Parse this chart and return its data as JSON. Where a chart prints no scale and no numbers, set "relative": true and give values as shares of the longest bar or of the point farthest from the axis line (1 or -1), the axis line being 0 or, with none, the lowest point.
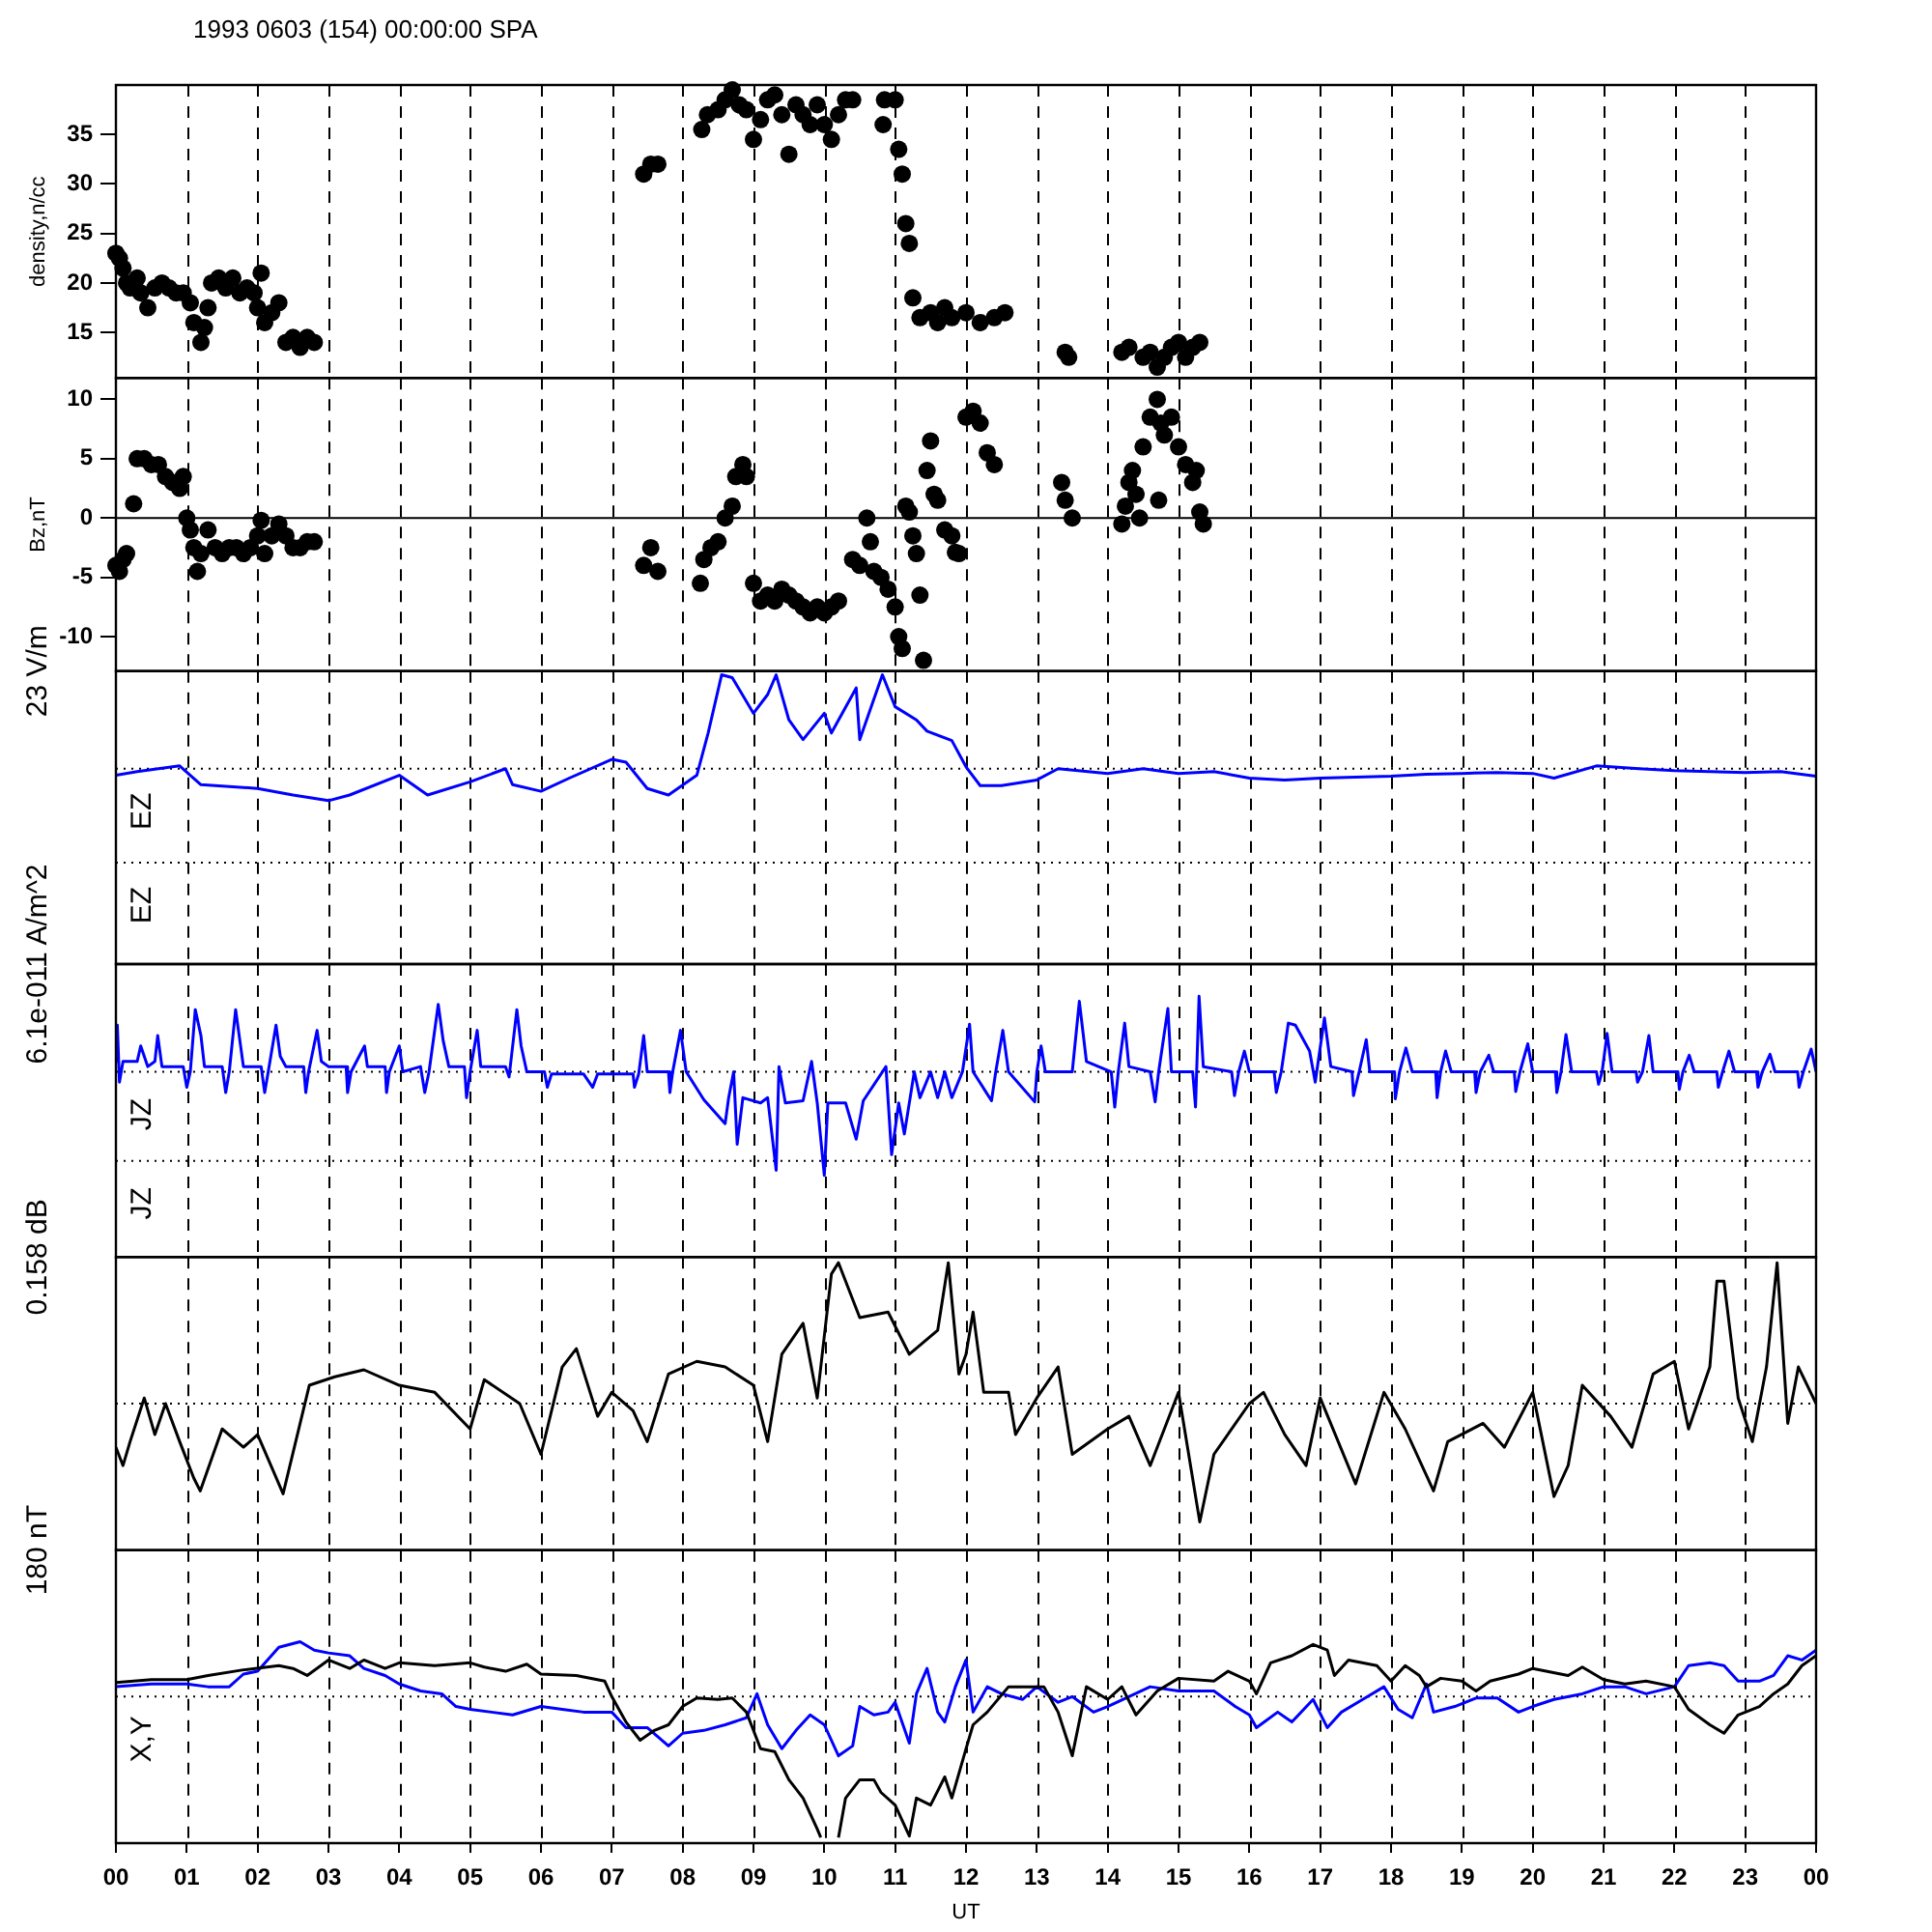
{
  "chart_data": [
    {
      "type": "scatter",
      "title": "1993 0603 (154) 00:00:00 SPA",
      "ylabel": "density,n/cc",
      "marker": "circle",
      "grid": "x",
      "tick_labels": "y",
      "xlim": [
        0,
        24
      ],
      "xticks": [
        {
          "value": 0,
          "label": null
        },
        {
          "value": 1,
          "label": null
        },
        {
          "value": 2,
          "label": null
        },
        {
          "value": 3,
          "label": null
        },
        {
          "value": 4,
          "label": null
        },
        {
          "value": 5,
          "label": null
        },
        {
          "value": 6,
          "label": null
        },
        {
          "value": 7,
          "label": null
        },
        {
          "value": 8,
          "label": null
        },
        {
          "value": 9,
          "label": null
        },
        {
          "value": 10,
          "label": null
        },
        {
          "value": 11,
          "label": null
        },
        {
          "value": 12,
          "label": null
        },
        {
          "value": 13,
          "label": null
        },
        {
          "value": 14,
          "label": null
        },
        {
          "value": 15,
          "label": null
        },
        {
          "value": 16,
          "label": null
        },
        {
          "value": 17,
          "label": null
        },
        {
          "value": 18,
          "label": null
        },
        {
          "value": 19,
          "label": null
        },
        {
          "value": 20,
          "label": null
        },
        {
          "value": 21,
          "label": null
        },
        {
          "value": 22,
          "label": null
        },
        {
          "value": 23,
          "label": null
        },
        {
          "value": 24,
          "label": null
        }
      ],
      "ylim": [
        10.4,
        40
      ],
      "yticks": [
        15,
        20,
        25,
        30,
        35
      ],
      "color": "#000000",
      "x": [
        0,
        0.05,
        0.1,
        0.15,
        0.2,
        0.3,
        0.35,
        0.45,
        0.55,
        0.65,
        0.75,
        0.85,
        0.95,
        1.05,
        1.1,
        1.2,
        1.25,
        1.3,
        1.35,
        1.45,
        1.55,
        1.65,
        1.75,
        1.85,
        1.95,
        2,
        2.05,
        2.1,
        2.2,
        2.3,
        2.4,
        2.5,
        2.6,
        2.7,
        2.8,
        7.45,
        7.55,
        7.65,
        8.27,
        8.35,
        8.5,
        8.6,
        8.7,
        8.8,
        8.9,
        9,
        9.1,
        9.2,
        9.3,
        9.4,
        9.5,
        9.6,
        9.7,
        9.8,
        9.9,
        10,
        10.1,
        10.2,
        10.3,
        10.4,
        10.83,
        10.85,
        11,
        11.05,
        11.1,
        11.15,
        11.2,
        11.25,
        11.35,
        11.5,
        11.6,
        11.7,
        11.8,
        12,
        12.2,
        12.4,
        12.55,
        13.4,
        13.45,
        14.2,
        14.3,
        14.5,
        14.6,
        14.7,
        14.8,
        14.9,
        15,
        15.1,
        15.2,
        15.3
      ],
      "values": [
        23,
        22.5,
        21.5,
        20,
        19.5,
        20.5,
        19,
        17.5,
        19.5,
        20,
        19.5,
        19,
        19,
        18,
        16,
        14,
        15.5,
        17.5,
        20,
        20.5,
        19.5,
        20.5,
        19,
        19.5,
        19,
        17.5,
        21,
        16,
        17,
        18,
        14,
        14.5,
        13.5,
        14.5,
        14,
        31,
        32,
        32,
        35.5,
        37,
        37.5,
        38.5,
        39.5,
        38,
        37.5,
        34.5,
        36.5,
        38.5,
        39,
        37,
        33,
        38,
        37,
        36,
        38,
        36,
        34.5,
        37,
        38.5,
        38.5,
        36,
        38.5,
        38.5,
        33.5,
        31,
        26,
        24,
        18.5,
        16.5,
        17,
        16,
        17.5,
        16.5,
        17,
        16,
        16.5,
        17,
        13,
        12.5,
        13,
        13.5,
        12.5,
        13,
        11.5,
        12.5,
        13.5,
        14,
        12.5,
        13.5,
        14
      ]
    },
    {
      "type": "scatter",
      "ylabel": "Bz,nT",
      "marker": "circle",
      "grid": "x",
      "tick_labels": "y",
      "xlim": [
        0,
        24
      ],
      "xticks": [
        {
          "value": 0,
          "label": null
        },
        {
          "value": 1,
          "label": null
        },
        {
          "value": 2,
          "label": null
        },
        {
          "value": 3,
          "label": null
        },
        {
          "value": 4,
          "label": null
        },
        {
          "value": 5,
          "label": null
        },
        {
          "value": 6,
          "label": null
        },
        {
          "value": 7,
          "label": null
        },
        {
          "value": 8,
          "label": null
        },
        {
          "value": 9,
          "label": null
        },
        {
          "value": 10,
          "label": null
        },
        {
          "value": 11,
          "label": null
        },
        {
          "value": 12,
          "label": null
        },
        {
          "value": 13,
          "label": null
        },
        {
          "value": 14,
          "label": null
        },
        {
          "value": 15,
          "label": null
        },
        {
          "value": 16,
          "label": null
        },
        {
          "value": 17,
          "label": null
        },
        {
          "value": 18,
          "label": null
        },
        {
          "value": 19,
          "label": null
        },
        {
          "value": 20,
          "label": null
        },
        {
          "value": 21,
          "label": null
        },
        {
          "value": 22,
          "label": null
        },
        {
          "value": 23,
          "label": null
        },
        {
          "value": 24,
          "label": null
        }
      ],
      "ylim": [
        -12.9,
        11.8
      ],
      "yticks": [
        -10,
        -5,
        0,
        5,
        10
      ],
      "color": "#000000",
      "ref_lines": [
        {
          "axis": "y",
          "value": 0,
          "line_style": "solid"
        }
      ],
      "x": [
        0,
        0.05,
        0.1,
        0.15,
        0.25,
        0.3,
        0.4,
        0.5,
        0.6,
        0.7,
        0.8,
        0.9,
        0.95,
        1,
        1.05,
        1.1,
        1.15,
        1.2,
        1.3,
        1.4,
        1.5,
        1.6,
        1.7,
        1.8,
        1.9,
        2,
        2.05,
        2.1,
        2.2,
        2.3,
        2.4,
        2.5,
        2.6,
        2.7,
        2.8,
        7.45,
        7.55,
        7.65,
        8.25,
        8.3,
        8.4,
        8.5,
        8.6,
        8.7,
        8.75,
        8.85,
        8.9,
        9,
        9.1,
        9.2,
        9.3,
        9.4,
        9.5,
        9.6,
        9.7,
        9.8,
        9.9,
        10,
        10.1,
        10.2,
        10.4,
        10.5,
        10.6,
        10.65,
        10.7,
        10.8,
        10.9,
        11,
        11.05,
        11.1,
        11.15,
        11.2,
        11.25,
        11.3,
        11.35,
        11.4,
        11.45,
        11.5,
        11.55,
        11.6,
        11.7,
        11.8,
        11.85,
        11.9,
        12,
        12.1,
        12.2,
        12.3,
        12.4,
        13.35,
        13.4,
        13.5,
        14.2,
        14.25,
        14.3,
        14.35,
        14.4,
        14.45,
        14.5,
        14.6,
        14.7,
        14.72,
        14.75,
        14.8,
        14.9,
        15,
        15.1,
        15.2,
        15.25,
        15.3,
        15.35
      ],
      "values": [
        -4,
        -4.5,
        -3.5,
        -3,
        1.2,
        5,
        5,
        4.5,
        4.5,
        3.5,
        3,
        2.5,
        3.5,
        0,
        -1,
        -2.5,
        -4.5,
        -3,
        -1,
        -2.5,
        -3,
        -2.5,
        -2.5,
        -3,
        -2.5,
        -1.5,
        -0.2,
        -3,
        -1.5,
        -0.5,
        -1.5,
        -2.5,
        -2.5,
        -2,
        -2,
        -4,
        -2.5,
        -4.5,
        -5.5,
        -3.5,
        -2.5,
        -2,
        0,
        1,
        3.5,
        4.5,
        3.5,
        -5.5,
        -7,
        -6.5,
        -7,
        -6,
        -6.5,
        -7,
        -7.5,
        -8,
        -7.5,
        -8,
        -7.5,
        -7,
        -3.5,
        -4,
        0,
        -2,
        -4.5,
        -5,
        -6,
        -7.5,
        -10,
        -11,
        1,
        0.5,
        -1.5,
        -3,
        -6.5,
        -12,
        4,
        6.5,
        2,
        1.5,
        -1,
        -1.5,
        -2.9,
        -3,
        8.5,
        9,
        8,
        5.5,
        4.5,
        3,
        1.5,
        0,
        -0.5,
        1,
        3,
        4,
        2,
        0,
        6,
        8.5,
        10,
        1.5,
        8,
        7,
        8.5,
        6,
        4.5,
        3,
        4,
        0.5,
        -0.5
      ]
    },
    {
      "type": "line",
      "ylabel": "23 V/m",
      "annotations": [
        "EZ",
        "EZ"
      ],
      "relative": true,
      "grid": "x",
      "tick_labels": false,
      "xlim": [
        0,
        24
      ],
      "xticks": [
        {
          "value": 0,
          "label": null
        },
        {
          "value": 1,
          "label": null
        },
        {
          "value": 2,
          "label": null
        },
        {
          "value": 3,
          "label": null
        },
        {
          "value": 4,
          "label": null
        },
        {
          "value": 5,
          "label": null
        },
        {
          "value": 6,
          "label": null
        },
        {
          "value": 7,
          "label": null
        },
        {
          "value": 8,
          "label": null
        },
        {
          "value": 9,
          "label": null
        },
        {
          "value": 10,
          "label": null
        },
        {
          "value": 11,
          "label": null
        },
        {
          "value": 12,
          "label": null
        },
        {
          "value": 13,
          "label": null
        },
        {
          "value": 14,
          "label": null
        },
        {
          "value": 15,
          "label": null
        },
        {
          "value": 16,
          "label": null
        },
        {
          "value": 17,
          "label": null
        },
        {
          "value": 18,
          "label": null
        },
        {
          "value": 19,
          "label": null
        },
        {
          "value": 20,
          "label": null
        },
        {
          "value": 21,
          "label": null
        },
        {
          "value": 22,
          "label": null
        },
        {
          "value": 23,
          "label": null
        },
        {
          "value": 24,
          "label": null
        }
      ],
      "ref_lines": [
        {
          "axis": "y",
          "value": 0,
          "line_style": "dotted"
        },
        {
          "axis": "y",
          "value": -1,
          "line_style": "dotted"
        }
      ],
      "color": "#0000ff",
      "x": [
        0,
        0.3,
        0.9,
        1.2,
        2,
        2.5,
        3,
        3.3,
        4,
        4.4,
        5,
        5.5,
        5.6,
        6,
        6.4,
        7,
        7.2,
        7.5,
        7.8,
        8.2,
        8.36,
        8.55,
        8.7,
        9,
        9.2,
        9.32,
        9.5,
        9.7,
        10,
        10.1,
        10.45,
        10.5,
        10.82,
        11,
        11.3,
        11.45,
        11.8,
        12,
        12.2,
        12.5,
        13,
        13.3,
        14,
        14.5,
        15,
        15.5,
        16,
        16.5,
        17,
        18,
        18.5,
        19,
        19.5,
        20,
        20.3,
        20.9,
        21.5,
        22,
        22.5,
        23,
        23.5,
        24
      ],
      "values": [
        -0.07,
        -0.03,
        0.03,
        -0.17,
        -0.21,
        -0.28,
        -0.34,
        -0.28,
        -0.07,
        -0.28,
        -0.14,
        0,
        -0.17,
        -0.24,
        -0.1,
        0.1,
        0.07,
        -0.21,
        -0.28,
        -0.07,
        0.38,
        1,
        0.97,
        0.59,
        0.79,
        1,
        0.52,
        0.31,
        0.59,
        0.38,
        0.86,
        0.31,
        1,
        0.66,
        0.52,
        0.4,
        0.3,
        0.02,
        -0.18,
        -0.18,
        -0.12,
        0,
        -0.05,
        0,
        -0.05,
        -0.03,
        -0.1,
        -0.12,
        -0.1,
        -0.08,
        -0.06,
        -0.05,
        -0.04,
        -0.05,
        -0.1,
        0.03,
        0,
        -0.02,
        -0.03,
        -0.04,
        -0.03,
        -0.08
      ]
    },
    {
      "type": "line",
      "ylabel": "6.1e-011 A/m^2",
      "annotations": [
        "JZ",
        "JZ"
      ],
      "relative": true,
      "grid": "x",
      "tick_labels": false,
      "xlim": [
        0,
        24
      ],
      "xticks": [
        {
          "value": 0,
          "label": null
        },
        {
          "value": 1,
          "label": null
        },
        {
          "value": 2,
          "label": null
        },
        {
          "value": 3,
          "label": null
        },
        {
          "value": 4,
          "label": null
        },
        {
          "value": 5,
          "label": null
        },
        {
          "value": 6,
          "label": null
        },
        {
          "value": 7,
          "label": null
        },
        {
          "value": 8,
          "label": null
        },
        {
          "value": 9,
          "label": null
        },
        {
          "value": 10,
          "label": null
        },
        {
          "value": 11,
          "label": null
        },
        {
          "value": 12,
          "label": null
        },
        {
          "value": 13,
          "label": null
        },
        {
          "value": 14,
          "label": null
        },
        {
          "value": 15,
          "label": null
        },
        {
          "value": 16,
          "label": null
        },
        {
          "value": 17,
          "label": null
        },
        {
          "value": 18,
          "label": null
        },
        {
          "value": 19,
          "label": null
        },
        {
          "value": 20,
          "label": null
        },
        {
          "value": 21,
          "label": null
        },
        {
          "value": 22,
          "label": null
        },
        {
          "value": 23,
          "label": null
        },
        {
          "value": 24,
          "label": null
        }
      ],
      "ref_lines": [
        {
          "axis": "y",
          "value": 0,
          "line_style": "dotted"
        },
        {
          "axis": "y",
          "value": -0.86,
          "line_style": "dotted"
        }
      ],
      "color": "#0000ff",
      "x": [
        0,
        0.02,
        0.05,
        0.1,
        0.3,
        0.35,
        0.45,
        0.55,
        0.59,
        0.65,
        0.95,
        1,
        1.05,
        1.12,
        1.2,
        1.25,
        1.5,
        1.55,
        1.6,
        1.69,
        1.75,
        1.8,
        2.05,
        2.1,
        2.15,
        2.26,
        2.32,
        2.4,
        2.65,
        2.68,
        2.72,
        2.84,
        2.9,
        3,
        3.25,
        3.27,
        3.32,
        3.51,
        3.55,
        3.8,
        3.82,
        3.86,
        4,
        4.05,
        4.3,
        4.36,
        4.42,
        4.55,
        4.62,
        4.7,
        4.92,
        4.95,
        5,
        5.1,
        5.15,
        5.5,
        5.55,
        5.66,
        5.72,
        5.8,
        6.05,
        6.09,
        6.15,
        6.6,
        6.73,
        6.8,
        7.3,
        7.32,
        7.38,
        7.45,
        7.5,
        7.8,
        7.82,
        7.86,
        7.97,
        8.05,
        8.3,
        8.6,
        8.65,
        8.72,
        8.77,
        8.85,
        9.1,
        9.2,
        9.32,
        9.36,
        9.45,
        9.7,
        9.82,
        9.9,
        10,
        10.05,
        10.3,
        10.45,
        10.55,
        10.87,
        10.95,
        11.05,
        11.13,
        11.27,
        11.35,
        11.5,
        11.6,
        11.7,
        11.8,
        11.95,
        12.05,
        12.1,
        12.36,
        12.42,
        12.52,
        12.6,
        12.97,
        13,
        13.06,
        13.12,
        13.5,
        13.6,
        13.7,
        14.05,
        14.1,
        14.15,
        14.24,
        14.3,
        14.6,
        14.67,
        14.72,
        14.85,
        14.9,
        15.2,
        15.24,
        15.29,
        15.35,
        15.75,
        15.79,
        15.85,
        15.93,
        16,
        16.35,
        16.38,
        16.45,
        16.55,
        16.65,
        16.85,
        16.93,
        17.06,
        17.15,
        17.45,
        17.47,
        17.55,
        17.65,
        17.7,
        18.05,
        18.06,
        18.12,
        18.21,
        18.3,
        18.63,
        18.65,
        18.7,
        18.77,
        18.85,
        19.18,
        19.2,
        19.26,
        19.38,
        19.45,
        19.74,
        19.76,
        19.82,
        19.93,
        20,
        20.32,
        20.34,
        20.4,
        20.47,
        20.55,
        20.9,
        20.93,
        20.98,
        21.05,
        21.12,
        21.46,
        21.48,
        21.55,
        21.64,
        21.7,
        22.05,
        22.07,
        22.12,
        22.21,
        22.28,
        22.6,
        22.62,
        22.68,
        22.77,
        22.85,
        23.16,
        23.18,
        23.24,
        23.35,
        23.42,
        23.74,
        23.76,
        23.82,
        23.93,
        24
      ],
      "values": [
        0.1,
        0.45,
        -0.1,
        0.1,
        0.1,
        0.25,
        0.05,
        0.1,
        0.35,
        0.05,
        0.05,
        -0.15,
        0,
        0.6,
        0.35,
        0.05,
        0.05,
        -0.2,
        0,
        0.6,
        0.3,
        0.05,
        0.05,
        -0.2,
        0,
        0.45,
        0.15,
        0.05,
        0.05,
        -0.2,
        0,
        0.4,
        0.1,
        0.05,
        0.05,
        -0.2,
        0,
        0.25,
        0.05,
        0.05,
        -0.2,
        0,
        0.25,
        0,
        0.05,
        -0.2,
        0,
        0.65,
        0.3,
        0.05,
        0.05,
        -0.25,
        0,
        0.4,
        0.05,
        0.05,
        -0.05,
        0.6,
        0.25,
        0,
        0,
        -0.15,
        -0.02,
        -0.02,
        -0.15,
        -0.02,
        -0.02,
        -0.15,
        -0.02,
        0.35,
        0,
        0,
        -0.2,
        0,
        0.4,
        0,
        -0.27,
        -0.5,
        -0.25,
        0,
        -0.7,
        -0.25,
        -0.3,
        -0.25,
        -0.95,
        0.05,
        -0.3,
        -0.28,
        0.1,
        -0.3,
        -1,
        -0.3,
        -0.3,
        -0.65,
        -0.28,
        0.05,
        -0.8,
        -0.3,
        -0.6,
        0,
        -0.25,
        0,
        -0.25,
        0,
        -0.25,
        0,
        0.46,
        0,
        -0.28,
        0,
        0.4,
        0,
        -0.29,
        0,
        0.25,
        0,
        0,
        0.68,
        0.1,
        0,
        -0.34,
        0,
        0.47,
        0.05,
        0,
        -0.29,
        0,
        0.61,
        0,
        0,
        -0.34,
        0.73,
        0.05,
        0,
        -0.23,
        0,
        0.2,
        0,
        0,
        -0.2,
        0,
        0.47,
        0.45,
        0.2,
        -0.1,
        0.52,
        0.05,
        0,
        -0.23,
        0,
        0.31,
        0,
        0,
        -0.26,
        0,
        0.23,
        0,
        0,
        -0.25,
        0,
        0.2,
        0,
        0,
        -0.2,
        0,
        0.16,
        0,
        0,
        -0.19,
        0,
        0.27,
        0,
        0,
        -0.2,
        0,
        0.36,
        0,
        0,
        -0.12,
        0,
        0.37,
        0,
        0,
        -0.1,
        0,
        0.35,
        0,
        0,
        -0.17,
        0,
        0.16,
        0,
        0,
        -0.15,
        0,
        0.2,
        0,
        0,
        -0.15,
        0,
        0.17,
        0,
        0,
        -0.15,
        0,
        0.22,
        0
      ]
    },
    {
      "type": "line",
      "ylabel": "0.158 dB",
      "relative": true,
      "grid": "x",
      "tick_labels": false,
      "xlim": [
        0,
        24
      ],
      "xticks": [
        {
          "value": 0,
          "label": null
        },
        {
          "value": 1,
          "label": null
        },
        {
          "value": 2,
          "label": null
        },
        {
          "value": 3,
          "label": null
        },
        {
          "value": 4,
          "label": null
        },
        {
          "value": 5,
          "label": null
        },
        {
          "value": 6,
          "label": null
        },
        {
          "value": 7,
          "label": null
        },
        {
          "value": 8,
          "label": null
        },
        {
          "value": 9,
          "label": null
        },
        {
          "value": 10,
          "label": null
        },
        {
          "value": 11,
          "label": null
        },
        {
          "value": 12,
          "label": null
        },
        {
          "value": 13,
          "label": null
        },
        {
          "value": 14,
          "label": null
        },
        {
          "value": 15,
          "label": null
        },
        {
          "value": 16,
          "label": null
        },
        {
          "value": 17,
          "label": null
        },
        {
          "value": 18,
          "label": null
        },
        {
          "value": 19,
          "label": null
        },
        {
          "value": 20,
          "label": null
        },
        {
          "value": 21,
          "label": null
        },
        {
          "value": 22,
          "label": null
        },
        {
          "value": 23,
          "label": null
        },
        {
          "value": 24,
          "label": null
        }
      ],
      "ref_lines": [
        {
          "axis": "y",
          "value": 0,
          "line_style": "dotted"
        }
      ],
      "color": "#000000",
      "x": [
        0,
        0.1,
        0.2,
        0.4,
        0.55,
        0.7,
        0.9,
        1.1,
        1.19,
        1.5,
        1.8,
        2,
        2.36,
        2.73,
        3.09,
        3.5,
        4,
        4.5,
        5,
        5.2,
        5.7,
        6,
        6.3,
        6.5,
        6.8,
        7,
        7.3,
        7.5,
        7.8,
        8.2,
        8.6,
        9,
        9.2,
        9.4,
        9.7,
        9.9,
        10.1,
        10.2,
        10.5,
        10.9,
        11.2,
        11.6,
        11.75,
        11.9,
        12,
        12.1,
        12.25,
        12.6,
        12.7,
        13,
        13.3,
        13.5,
        14,
        14.3,
        14.6,
        15,
        15.3,
        15.5,
        16,
        16.2,
        16.5,
        16.8,
        17,
        17.5,
        17.9,
        18.2,
        18.6,
        18.8,
        19.3,
        19.6,
        20,
        20.3,
        20.5,
        20.7,
        21.1,
        21.4,
        21.7,
        22,
        22.2,
        22.5,
        22.6,
        22.7,
        22.9,
        23.1,
        23.3,
        23.45,
        23.6,
        23.75,
        24
      ],
      "values": [
        -0.31,
        -0.44,
        -0.27,
        0.04,
        -0.22,
        0,
        -0.27,
        -0.53,
        -0.62,
        -0.18,
        -0.31,
        -0.22,
        -0.64,
        0.13,
        0.19,
        0.24,
        0.13,
        0.08,
        -0.18,
        0.17,
        0,
        -0.36,
        0.26,
        0.39,
        -0.09,
        0.08,
        -0.05,
        -0.27,
        0.21,
        0.3,
        0.26,
        0.13,
        -0.27,
        0.35,
        0.57,
        0.04,
        0.92,
        1,
        0.61,
        0.65,
        0.35,
        0.52,
        1,
        0.21,
        0.35,
        0.65,
        0.08,
        0.08,
        -0.22,
        0.04,
        0.26,
        -0.36,
        -0.18,
        -0.09,
        -0.44,
        0.08,
        -0.84,
        -0.36,
        0,
        0.08,
        -0.22,
        -0.44,
        0.04,
        -0.57,
        0.08,
        -0.18,
        -0.62,
        -0.27,
        -0.14,
        -0.31,
        0.08,
        -0.66,
        -0.44,
        0.13,
        -0.09,
        -0.31,
        0.21,
        0.3,
        -0.18,
        0.26,
        0.87,
        0.87,
        0.04,
        -0.27,
        0.26,
        1,
        -0.14,
        0.26,
        0
      ]
    },
    {
      "type": "line",
      "ylabel": "180 nT",
      "xlabel": "UT",
      "annotations": [
        "X,Y"
      ],
      "relative": true,
      "grid": "x",
      "tick_labels": "x",
      "xlim": [
        0,
        24
      ],
      "xticks": [
        {
          "value": 0,
          "label": "00"
        },
        {
          "value": 1,
          "label": "01"
        },
        {
          "value": 2,
          "label": "02"
        },
        {
          "value": 3,
          "label": "03"
        },
        {
          "value": 4,
          "label": "04"
        },
        {
          "value": 5,
          "label": "05"
        },
        {
          "value": 6,
          "label": "06"
        },
        {
          "value": 7,
          "label": "07"
        },
        {
          "value": 8,
          "label": "08"
        },
        {
          "value": 9,
          "label": "09"
        },
        {
          "value": 10,
          "label": "10"
        },
        {
          "value": 11,
          "label": "11"
        },
        {
          "value": 12,
          "label": "12"
        },
        {
          "value": 13,
          "label": "13"
        },
        {
          "value": 14,
          "label": "14"
        },
        {
          "value": 15,
          "label": "15"
        },
        {
          "value": 16,
          "label": "16"
        },
        {
          "value": 17,
          "label": "17"
        },
        {
          "value": 18,
          "label": "18"
        },
        {
          "value": 19,
          "label": "19"
        },
        {
          "value": 20,
          "label": "20"
        },
        {
          "value": 21,
          "label": "21"
        },
        {
          "value": 22,
          "label": "22"
        },
        {
          "value": 23,
          "label": "23"
        },
        {
          "value": 24,
          "label": "00"
        }
      ],
      "ref_lines": [
        {
          "axis": "y",
          "value": 0,
          "line_style": "dotted"
        }
      ],
      "series": [
        {
          "color": "#000000",
          "x": [
            0,
            0.5,
            1,
            1.3,
            1.8,
            2.3,
            2.5,
            2.7,
            3,
            3.3,
            3.5,
            3.8,
            4,
            4.5,
            5,
            5.2,
            5.5,
            5.8,
            6,
            6.5,
            6.9,
            7,
            7.2,
            7.4,
            7.6,
            7.8,
            8,
            8.2,
            8.5,
            8.7,
            8.9,
            9.1,
            9.3,
            9.5,
            9.7,
            9.9,
            9.95,
            10,
            10.15,
            10.2,
            10.3,
            10.5,
            10.7,
            10.8,
            11,
            11.2,
            11.3,
            11.5,
            11.7,
            11.8,
            12,
            12.1,
            12.3,
            12.6,
            12.9,
            13.1,
            13.3,
            13.5,
            13.7,
            14,
            14.2,
            14.4,
            14.7,
            15,
            15.5,
            15.7,
            16,
            16.1,
            16.3,
            16.6,
            16.9,
            17.1,
            17.2,
            17.4,
            17.8,
            18,
            18.2,
            18.4,
            18.5,
            18.7,
            19,
            19.2,
            19.4,
            19.8,
            20,
            20.5,
            20.7,
            21,
            21.3,
            21.6,
            22,
            22.2,
            22.5,
            22.7,
            22.9,
            23.2,
            23.4,
            23.6,
            23.8,
            24
          ],
          "values": [
            0.1,
            0.12,
            0.12,
            0.15,
            0.19,
            0.22,
            0.2,
            0.15,
            0.26,
            0.2,
            0.26,
            0.2,
            0.24,
            0.22,
            0.24,
            0.21,
            0.18,
            0.23,
            0.16,
            0.15,
            0.11,
            0,
            -0.18,
            -0.31,
            -0.24,
            -0.2,
            -0.07,
            -0.01,
            -0.02,
            -0.01,
            -0.11,
            -0.37,
            -0.39,
            -0.59,
            -0.72,
            -0.94,
            -1,
            null,
            null,
            -1,
            -0.72,
            -0.59,
            -0.59,
            -0.68,
            -0.77,
            -0.99,
            -0.72,
            -0.77,
            -0.57,
            -0.72,
            -0.37,
            -0.2,
            -0.11,
            0.07,
            0.07,
            0.07,
            -0.11,
            -0.42,
            0.07,
            -0.02,
            0.07,
            -0.13,
            0.04,
            0.13,
            0.11,
            0.18,
            0.11,
            0.02,
            0.24,
            0.29,
            0.37,
            0.33,
            0.15,
            0.26,
            0.22,
            0.11,
            0.22,
            0.15,
            0.07,
            0.13,
            0.11,
            0.04,
            0.11,
            0.16,
            0.2,
            0.15,
            0.21,
            0.12,
            0.09,
            0.11,
            0.07,
            -0.09,
            -0.2,
            -0.26,
            -0.13,
            -0.07,
            0.02,
            0.09,
            0.22,
            0.29
          ]
        },
        {
          "color": "#0000ff",
          "x": [
            0,
            0.5,
            1,
            1.3,
            1.6,
            1.8,
            2,
            2.3,
            2.6,
            2.8,
            3,
            3.3,
            3.5,
            3.8,
            4,
            4.3,
            4.6,
            4.8,
            5,
            5.3,
            5.6,
            6,
            6.3,
            6.6,
            7,
            7.2,
            7.5,
            7.8,
            8,
            8.3,
            8.6,
            8.9,
            9.05,
            9.2,
            9.4,
            9.6,
            9.8,
            10,
            10.2,
            10.4,
            10.5,
            10.7,
            10.9,
            11,
            11.2,
            11.3,
            11.45,
            11.6,
            11.7,
            11.85,
            12,
            12.1,
            12.3,
            12.5,
            12.8,
            13,
            13.3,
            13.5,
            13.8,
            14,
            14.3,
            14.6,
            15,
            15.5,
            15.8,
            16,
            16.1,
            16.4,
            16.6,
            16.9,
            17.1,
            17.3,
            17.6,
            17.9,
            18.1,
            18.3,
            18.5,
            18.6,
            18.9,
            19.2,
            19.5,
            19.8,
            20,
            20.3,
            20.7,
            21,
            21.3,
            21.6,
            22,
            22.2,
            22.5,
            22.7,
            22.9,
            23.2,
            23.4,
            23.6,
            23.8,
            24
          ],
          "values": [
            0.07,
            0.09,
            0.09,
            0.07,
            0.07,
            0.16,
            0.18,
            0.35,
            0.39,
            0.33,
            0.31,
            0.29,
            0.2,
            0.15,
            0.09,
            0.04,
            0.02,
            -0.07,
            -0.09,
            -0.11,
            -0.13,
            -0.07,
            -0.09,
            -0.11,
            -0.11,
            -0.22,
            -0.22,
            -0.35,
            -0.26,
            -0.24,
            -0.2,
            -0.15,
            0.02,
            -0.2,
            -0.37,
            -0.24,
            -0.13,
            -0.2,
            -0.42,
            -0.35,
            -0.07,
            -0.13,
            -0.11,
            -0.04,
            -0.33,
            0.02,
            0.2,
            -0.11,
            -0.18,
            0.07,
            0.26,
            -0.11,
            0.07,
            0.02,
            -0.02,
            0.07,
            -0.04,
            0,
            -0.11,
            -0.07,
            0,
            0.07,
            0.04,
            0.04,
            -0.07,
            -0.13,
            -0.22,
            -0.11,
            -0.18,
            -0.02,
            -0.22,
            -0.11,
            -0.02,
            0.07,
            -0.09,
            -0.15,
            0.09,
            -0.11,
            -0.07,
            -0.01,
            -0.01,
            -0.11,
            -0.07,
            -0.02,
            0.02,
            0.07,
            0.07,
            0.02,
            0.07,
            0.22,
            0.24,
            0.22,
            0.11,
            0.11,
            0.15,
            0.29,
            0.26,
            0.33
          ]
        }
      ]
    }
  ]
}
